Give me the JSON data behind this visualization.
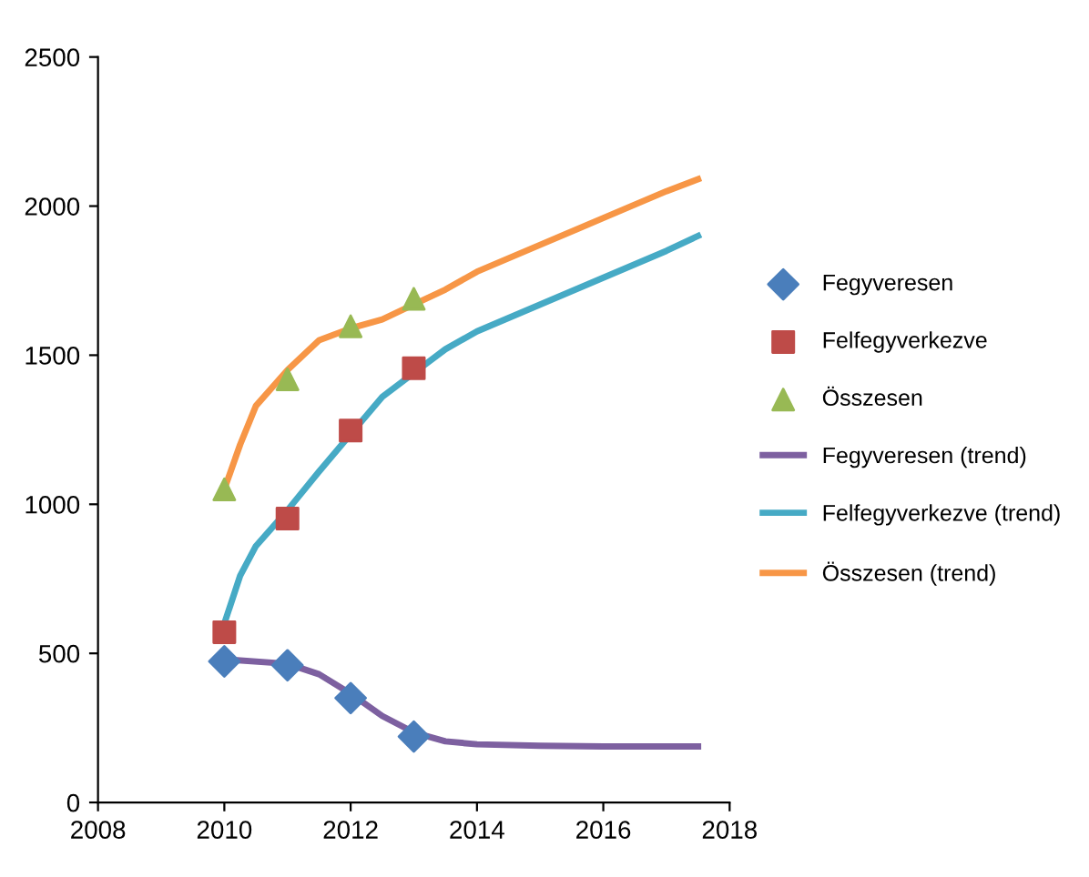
{
  "chart_data": {
    "type": "line",
    "xlim": [
      2008,
      2018
    ],
    "xticks": [
      2008,
      2010,
      2012,
      2014,
      2016,
      2018
    ],
    "ylim": [
      0,
      2500
    ],
    "yticks": [
      0,
      500,
      1000,
      1500,
      2000,
      2500
    ],
    "grid": false,
    "legend": "right",
    "series": [
      {
        "name": "Fegyveresen",
        "type": "scatter",
        "marker": "diamond",
        "color": "#4a7ebb",
        "x": [
          2010,
          2011,
          2012,
          2013
        ],
        "values": [
          473,
          460,
          350,
          221
        ]
      },
      {
        "name": "Felfegyverkezve",
        "type": "scatter",
        "marker": "square",
        "color": "#be4b48",
        "x": [
          2010,
          2011,
          2012,
          2013
        ],
        "values": [
          571,
          952,
          1247,
          1456
        ]
      },
      {
        "name": "Összesen",
        "type": "scatter",
        "marker": "triangle",
        "color": "#98b954",
        "x": [
          2010,
          2011,
          2012,
          2013
        ],
        "values": [
          1050,
          1419,
          1597,
          1689
        ]
      },
      {
        "name": "Fegyveresen (trend)",
        "marker": "none",
        "color": "#7d60a0",
        "x": [
          2010,
          2011,
          2011.5,
          2012,
          2012.5,
          2013,
          2013.5,
          2014,
          2015,
          2016,
          2017.5
        ],
        "values": [
          480,
          465,
          430,
          365,
          290,
          235,
          205,
          195,
          190,
          188,
          188
        ]
      },
      {
        "name": "Felfegyverkezve (trend)",
        "marker": "none",
        "color": "#46aac5",
        "x": [
          2010,
          2010.25,
          2010.5,
          2011,
          2011.5,
          2012.5,
          2013,
          2013.5,
          2014,
          2015,
          2016,
          2017,
          2017.5
        ],
        "values": [
          600,
          760,
          860,
          980,
          1110,
          1360,
          1440,
          1520,
          1580,
          1670,
          1760,
          1850,
          1900
        ]
      },
      {
        "name": "Összesen (trend)",
        "marker": "none",
        "color": "#f79646",
        "x": [
          2010,
          2010.25,
          2010.5,
          2011,
          2011.5,
          2012,
          2012.5,
          2013,
          2013.5,
          2014,
          2015,
          2016,
          2017,
          2017.5
        ],
        "values": [
          1050,
          1200,
          1330,
          1450,
          1550,
          1590,
          1620,
          1670,
          1720,
          1780,
          1870,
          1960,
          2050,
          2090
        ]
      }
    ]
  }
}
